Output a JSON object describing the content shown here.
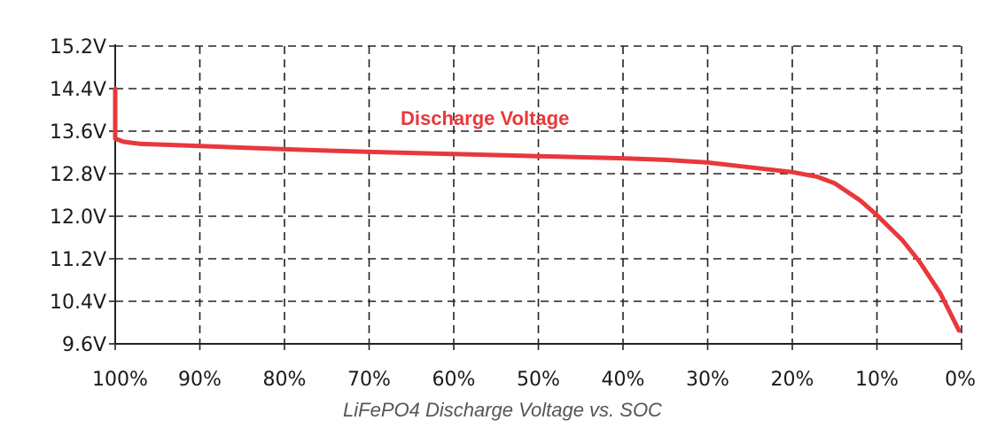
{
  "chart_data": {
    "type": "line",
    "title": "LiFePO4 Discharge Voltage vs. SOC",
    "xlabel": "",
    "ylabel": "",
    "x_categories": [
      "100%",
      "90%",
      "80%",
      "70%",
      "60%",
      "50%",
      "40%",
      "30%",
      "20%",
      "10%",
      "0%"
    ],
    "xlim": [
      100,
      0
    ],
    "ylim": [
      9.6,
      15.2
    ],
    "y_ticks": [
      9.6,
      10.4,
      11.2,
      12.0,
      12.8,
      13.6,
      14.4,
      15.2
    ],
    "y_tick_labels": [
      "9.6V",
      "10.4V",
      "11.2V",
      "12.0V",
      "12.8V",
      "13.6V",
      "14.4V",
      "15.2V"
    ],
    "grid": true,
    "series": [
      {
        "name": "Discharge Voltage",
        "color": "#e8383c",
        "x": [
          100,
          100,
          99,
          97,
          95,
          90,
          80,
          70,
          60,
          50,
          40,
          35,
          30,
          25,
          20,
          17,
          15,
          12,
          10,
          7,
          5,
          2.5,
          0.3
        ],
        "y": [
          14.4,
          13.46,
          13.4,
          13.36,
          13.35,
          13.32,
          13.26,
          13.21,
          13.17,
          13.13,
          13.09,
          13.06,
          13.01,
          12.92,
          12.83,
          12.74,
          12.62,
          12.3,
          12.02,
          11.55,
          11.15,
          10.55,
          9.85
        ]
      }
    ]
  }
}
